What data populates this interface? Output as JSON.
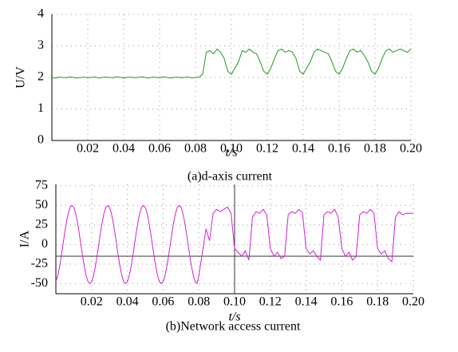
{
  "chart_data": [
    {
      "type": "line",
      "ylabel": "U/V",
      "xlabel": "t/s",
      "caption": "(a)d-axis current",
      "color": "#1f9a1f",
      "grid": true,
      "xlim": [
        0,
        0.2
      ],
      "xticks": [
        0.02,
        0.04,
        0.06,
        0.08,
        {
          "value": 0.1,
          "label": "0.10"
        },
        0.12,
        0.14,
        0.16,
        0.18,
        {
          "value": 0.2,
          "label": "0.20"
        }
      ],
      "ylim": [
        0,
        4
      ],
      "yticks": [
        0,
        1,
        2,
        3,
        4
      ],
      "x": [
        0,
        0.002,
        0.004,
        0.006,
        0.008,
        0.01,
        0.012,
        0.014,
        0.016,
        0.018,
        0.02,
        0.022,
        0.024,
        0.026,
        0.028,
        0.03,
        0.032,
        0.034,
        0.036,
        0.038,
        0.04,
        0.042,
        0.044,
        0.046,
        0.048,
        0.05,
        0.052,
        0.054,
        0.056,
        0.058,
        0.06,
        0.062,
        0.064,
        0.066,
        0.068,
        0.07,
        0.072,
        0.074,
        0.076,
        0.078,
        0.08,
        0.082,
        0.084,
        0.086,
        0.088,
        0.09,
        0.092,
        0.094,
        0.096,
        0.098,
        0.1,
        0.102,
        0.104,
        0.106,
        0.108,
        0.11,
        0.112,
        0.114,
        0.116,
        0.118,
        0.12,
        0.122,
        0.124,
        0.126,
        0.128,
        0.13,
        0.132,
        0.134,
        0.136,
        0.138,
        0.14,
        0.142,
        0.144,
        0.146,
        0.148,
        0.15,
        0.152,
        0.154,
        0.156,
        0.158,
        0.16,
        0.162,
        0.164,
        0.166,
        0.168,
        0.17,
        0.172,
        0.174,
        0.176,
        0.178,
        0.18,
        0.182,
        0.184,
        0.186,
        0.188,
        0.19,
        0.192,
        0.194,
        0.196,
        0.198,
        0.2
      ],
      "values": [
        2,
        1.98,
        2.01,
        2,
        1.99,
        2.02,
        2,
        1.98,
        2,
        2.01,
        1.99,
        2,
        2.02,
        1.98,
        2,
        2.01,
        2,
        1.99,
        2.02,
        2,
        1.98,
        2,
        2.01,
        1.99,
        2,
        2.02,
        2,
        1.98,
        2.01,
        2,
        1.99,
        2.02,
        2,
        1.98,
        2,
        2.01,
        1.99,
        2,
        2.02,
        1.98,
        2,
        2.01,
        2.1,
        2.8,
        2.85,
        2.75,
        2.9,
        2.8,
        2.6,
        2.2,
        2.1,
        2.3,
        2.5,
        2.85,
        2.8,
        2.9,
        2.8,
        2.75,
        2.5,
        2.2,
        2.1,
        2.3,
        2.6,
        2.85,
        2.9,
        2.8,
        2.85,
        2.8,
        2.6,
        2.2,
        2.1,
        2.3,
        2.5,
        2.8,
        2.9,
        2.85,
        2.8,
        2.75,
        2.5,
        2.2,
        2.1,
        2.3,
        2.6,
        2.85,
        2.9,
        2.8,
        2.85,
        2.7,
        2.5,
        2.2,
        2.1,
        2.3,
        2.6,
        2.85,
        2.9,
        2.8,
        2.85,
        2.9,
        2.85,
        2.8,
        2.9
      ]
    },
    {
      "type": "line",
      "ylabel": "I/A",
      "xlabel": "t/s",
      "caption": "(b)Network access current",
      "color": "#d21fd2",
      "grid": true,
      "xlim": [
        0,
        0.2
      ],
      "xticks": [
        0.02,
        0.04,
        0.06,
        0.08,
        {
          "value": 0.1,
          "label": "0.10"
        },
        0.12,
        0.14,
        0.16,
        0.18,
        {
          "value": 0.2,
          "label": "0.20"
        }
      ],
      "ylim": [
        -63,
        77
      ],
      "yticks": [
        -50,
        -25,
        0,
        25,
        50,
        75
      ],
      "hline": -15,
      "vline": 0.1,
      "x": [
        0,
        0.001,
        0.002,
        0.003,
        0.004,
        0.005,
        0.006,
        0.007,
        0.008,
        0.009,
        0.01,
        0.011,
        0.012,
        0.013,
        0.014,
        0.015,
        0.016,
        0.017,
        0.018,
        0.019,
        0.02,
        0.021,
        0.022,
        0.023,
        0.024,
        0.025,
        0.026,
        0.027,
        0.028,
        0.029,
        0.03,
        0.031,
        0.032,
        0.033,
        0.034,
        0.035,
        0.036,
        0.037,
        0.038,
        0.039,
        0.04,
        0.041,
        0.042,
        0.043,
        0.044,
        0.045,
        0.046,
        0.047,
        0.048,
        0.049,
        0.05,
        0.051,
        0.052,
        0.053,
        0.054,
        0.055,
        0.056,
        0.057,
        0.058,
        0.059,
        0.06,
        0.061,
        0.062,
        0.063,
        0.064,
        0.065,
        0.066,
        0.067,
        0.068,
        0.069,
        0.07,
        0.071,
        0.072,
        0.073,
        0.074,
        0.075,
        0.076,
        0.077,
        0.078,
        0.079,
        0.08,
        0.082,
        0.084,
        0.086,
        0.088,
        0.09,
        0.092,
        0.094,
        0.096,
        0.098,
        0.1,
        0.102,
        0.104,
        0.106,
        0.108,
        0.11,
        0.112,
        0.114,
        0.116,
        0.118,
        0.12,
        0.122,
        0.124,
        0.126,
        0.128,
        0.13,
        0.132,
        0.134,
        0.136,
        0.138,
        0.14,
        0.142,
        0.144,
        0.146,
        0.148,
        0.15,
        0.152,
        0.154,
        0.156,
        0.158,
        0.16,
        0.162,
        0.164,
        0.166,
        0.168,
        0.17,
        0.172,
        0.174,
        0.176,
        0.178,
        0.18,
        0.182,
        0.184,
        0.186,
        0.188,
        0.19,
        0.192,
        0.194,
        0.196,
        0.198,
        0.2
      ],
      "values": [
        -47.6,
        -40.5,
        -29.4,
        -15.5,
        0,
        15.5,
        29.4,
        40.5,
        47.6,
        50,
        47.6,
        40.5,
        29.4,
        15.5,
        0,
        -15.5,
        -29.4,
        -40.5,
        -47.6,
        -50,
        -47.6,
        -40.5,
        -29.4,
        -15.5,
        0,
        15.5,
        29.4,
        40.5,
        47.6,
        50,
        47.6,
        40.5,
        29.4,
        15.5,
        0,
        -15.5,
        -29.4,
        -40.5,
        -47.6,
        -50,
        -47.6,
        -40.5,
        -29.4,
        -15.5,
        0,
        15.5,
        29.4,
        40.5,
        47.6,
        50,
        47.6,
        40.5,
        29.4,
        15.5,
        0,
        -15.5,
        -29.4,
        -40.5,
        -47.6,
        -50,
        -47.6,
        -40.5,
        -29.4,
        -15.5,
        0,
        15.5,
        29.4,
        40.5,
        47.6,
        50,
        47.6,
        40.5,
        29.4,
        15.5,
        0,
        -15.5,
        -29.4,
        -40.5,
        -47.6,
        -50,
        -40,
        -10,
        20,
        5,
        40,
        45,
        42,
        45,
        48,
        40,
        -5,
        -10,
        -15,
        -8,
        -20,
        35,
        42,
        40,
        45,
        38,
        -5,
        -15,
        -10,
        -18,
        -15,
        38,
        42,
        40,
        45,
        40,
        -5,
        -12,
        -8,
        -15,
        -20,
        38,
        42,
        40,
        45,
        35,
        -5,
        -15,
        -10,
        -20,
        -15,
        38,
        42,
        40,
        45,
        40,
        -5,
        -12,
        -8,
        -18,
        -22,
        35,
        42,
        38,
        40,
        40,
        40
      ]
    }
  ]
}
